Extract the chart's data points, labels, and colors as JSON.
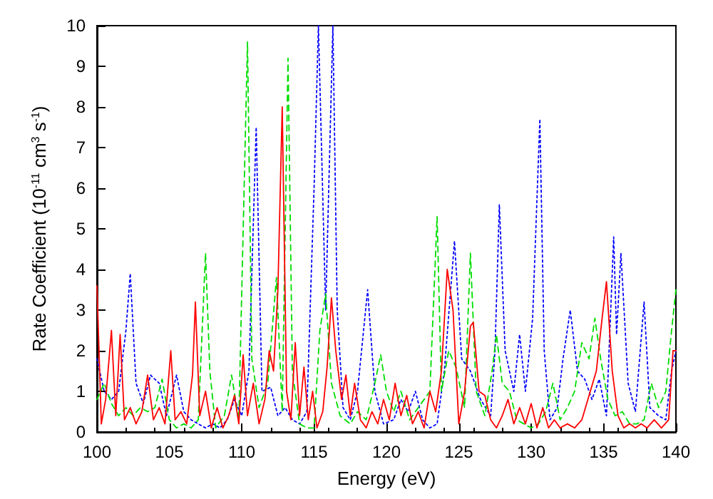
{
  "chart_data": {
    "type": "line",
    "xlabel": "Energy (eV)",
    "ylabel": "Rate Coefficient (10$^{-11}$ cm$^{3}$ s$^{-1}$)",
    "xlim": [
      100,
      140
    ],
    "xticks": [
      100,
      105,
      110,
      115,
      120,
      125,
      130,
      135,
      140
    ],
    "ylim": [
      0,
      10
    ],
    "yticks": [
      0,
      1,
      2,
      3,
      4,
      5,
      6,
      7,
      8,
      9,
      10
    ],
    "grid": false,
    "marker": "none",
    "series": [
      {
        "color": "#0000ff",
        "line_style": "dotted",
        "x": [
          100,
          100.5,
          101,
          101.5,
          102,
          102.3,
          102.7,
          103.2,
          103.7,
          104.3,
          104.8,
          105.5,
          106,
          106.5,
          107,
          107.5,
          108,
          108.5,
          109,
          109.5,
          110,
          110.5,
          111,
          111.4,
          112,
          112.5,
          113,
          113.5,
          114,
          114.5,
          115,
          115.3,
          115.8,
          116.3,
          116.6,
          117,
          117.5,
          118,
          118.7,
          119.2,
          119.8,
          120.5,
          121,
          121.5,
          122,
          122.5,
          123,
          123.5,
          124,
          124.7,
          125.2,
          125.8,
          126.5,
          127.2,
          127.5,
          127.8,
          128.2,
          128.8,
          129.2,
          129.6,
          130.1,
          130.6,
          130.9,
          131.3,
          131.8,
          132.2,
          132.7,
          133.2,
          133.7,
          134.2,
          134.7,
          135.2,
          135.7,
          135.9,
          136.2,
          136.7,
          137.2,
          137.8,
          138.2,
          138.8,
          139.3,
          139.7,
          140
        ],
        "values": [
          1.8,
          1.0,
          0.8,
          1.0,
          2.5,
          3.9,
          1.2,
          0.7,
          1.4,
          1.2,
          0.4,
          1.4,
          0.5,
          0.3,
          0.2,
          0.1,
          0.2,
          0.1,
          0.3,
          0.8,
          0.4,
          1.5,
          7.5,
          1.0,
          1.1,
          0.4,
          0.6,
          0.3,
          0.2,
          0.5,
          6,
          10,
          3,
          10,
          3,
          0.6,
          0.3,
          1.0,
          3.5,
          1.0,
          0.2,
          0.3,
          0.8,
          0.5,
          1.0,
          0.3,
          0.1,
          0.2,
          1.5,
          4.7,
          1.8,
          1.5,
          0.8,
          0.4,
          2.0,
          5.6,
          2.0,
          1.0,
          2.4,
          1.0,
          2.8,
          7.7,
          2.0,
          0.3,
          0.6,
          1.8,
          3.0,
          1.5,
          1.3,
          0.8,
          1.3,
          0.4,
          4.8,
          2.4,
          4.4,
          1.2,
          0.5,
          3.2,
          0.6,
          0.4,
          0.3,
          1.5,
          2.0
        ]
      },
      {
        "color": "#00dd00",
        "line_style": "dashed",
        "x": [
          100,
          100.5,
          101,
          101.5,
          102,
          102.5,
          103,
          103.5,
          104,
          104.5,
          105,
          105.5,
          106,
          106.5,
          107,
          107.5,
          107.8,
          108.2,
          108.8,
          109.3,
          109.8,
          110.4,
          110.7,
          111.2,
          111.8,
          112.4,
          112.8,
          113.2,
          113.5,
          114,
          114.5,
          115,
          115.4,
          115.8,
          116.2,
          116.8,
          117.5,
          118,
          118.6,
          119.2,
          119.6,
          120,
          120.5,
          121,
          121.6,
          122.2,
          123,
          123.5,
          123.8,
          124.3,
          124.8,
          125.4,
          125.8,
          126.2,
          126.8,
          127.3,
          127.6,
          128,
          128.5,
          129,
          129.5,
          130,
          130.5,
          131,
          131.5,
          132,
          132.5,
          133,
          133.5,
          134,
          134.4,
          134.8,
          135.3,
          135.8,
          136.3,
          136.8,
          137.3,
          137.8,
          138.3,
          138.8,
          139.3,
          139.7,
          140
        ],
        "values": [
          0.8,
          1.2,
          0.7,
          0.4,
          0.6,
          0.4,
          0.6,
          0.5,
          0.6,
          1.3,
          0.3,
          0.1,
          0.2,
          0.1,
          0.3,
          4.4,
          1.5,
          0.1,
          0.4,
          1.4,
          0.3,
          9.6,
          1.8,
          0.6,
          1.2,
          3.8,
          0.5,
          9.2,
          1.5,
          0.2,
          0.1,
          0.1,
          2.5,
          3.4,
          1.2,
          0.4,
          0.2,
          0.5,
          0.3,
          1.2,
          1.9,
          1.0,
          0.5,
          1.0,
          0.3,
          0.6,
          1.0,
          5.3,
          1.0,
          2.0,
          1.6,
          0.6,
          4.4,
          1.0,
          0.4,
          1.5,
          2.4,
          1.2,
          1.0,
          0.3,
          0.2,
          0.1,
          0.2,
          0.5,
          1.2,
          0.3,
          0.6,
          1.0,
          2.2,
          1.8,
          2.8,
          1.8,
          0.8,
          0.4,
          0.5,
          0.2,
          0.2,
          0.3,
          1.2,
          0.6,
          1.0,
          2.5,
          3.5
        ]
      },
      {
        "color": "#ff0000",
        "line_style": "solid",
        "x": [
          100,
          100.3,
          100.6,
          101,
          101.3,
          101.6,
          101.9,
          102.3,
          102.7,
          103.1,
          103.5,
          103.9,
          104.3,
          104.7,
          105.1,
          105.4,
          105.8,
          106.2,
          106.6,
          106.8,
          107.1,
          107.5,
          107.9,
          108.3,
          108.7,
          109.1,
          109.5,
          109.8,
          110.1,
          110.4,
          110.8,
          111.2,
          111.6,
          111.9,
          112.2,
          112.5,
          112.8,
          113.1,
          113.4,
          113.7,
          114,
          114.3,
          114.6,
          114.9,
          115.2,
          115.6,
          115.9,
          116.2,
          116.5,
          116.9,
          117.2,
          117.5,
          117.8,
          118.2,
          118.6,
          119,
          119.4,
          119.8,
          120.2,
          120.6,
          121,
          121.4,
          121.8,
          122.2,
          122.6,
          123,
          123.4,
          123.8,
          124.2,
          124.6,
          125,
          125.4,
          125.8,
          126,
          126.4,
          126.8,
          127.2,
          127.6,
          128,
          128.4,
          128.8,
          129.2,
          129.6,
          130,
          130.4,
          130.8,
          131.2,
          131.6,
          132,
          132.5,
          133,
          133.5,
          134,
          134.5,
          134.9,
          135.2,
          135.6,
          136,
          136.4,
          136.8,
          137.2,
          137.6,
          138,
          138.5,
          139,
          139.5,
          139.8,
          140
        ],
        "values": [
          3.6,
          0.2,
          0.8,
          2.5,
          0.4,
          2.4,
          0.3,
          0.6,
          0.2,
          0.5,
          1.4,
          0.3,
          0.6,
          0.2,
          2.0,
          0.3,
          0.5,
          0.2,
          1.4,
          3.2,
          0.4,
          1.0,
          0.1,
          0.6,
          0.1,
          0.4,
          0.9,
          0.2,
          1.9,
          0.4,
          1.2,
          0.2,
          0.8,
          2.0,
          1.5,
          3.5,
          8.0,
          1.0,
          0.3,
          2.2,
          0.4,
          1.6,
          0.3,
          1.0,
          0.1,
          0.5,
          1.6,
          3.3,
          2.0,
          0.8,
          1.4,
          0.4,
          1.2,
          0.3,
          0.1,
          0.5,
          0.2,
          0.8,
          0.3,
          1.2,
          0.4,
          0.9,
          0.2,
          0.5,
          0.1,
          1.0,
          0.5,
          1.5,
          4.0,
          3.0,
          0.2,
          1.0,
          2.6,
          2.7,
          1.0,
          0.9,
          0.3,
          0.1,
          0.4,
          0.8,
          0.2,
          0.6,
          0.2,
          0.7,
          0.1,
          0.6,
          0.1,
          0.3,
          0.1,
          0.2,
          0.1,
          0.3,
          0.9,
          1.5,
          2.8,
          3.7,
          1.5,
          0.4,
          0.1,
          0.2,
          0.1,
          0.2,
          0.1,
          0.3,
          0.1,
          0.3,
          2.0,
          2.0
        ]
      }
    ]
  }
}
